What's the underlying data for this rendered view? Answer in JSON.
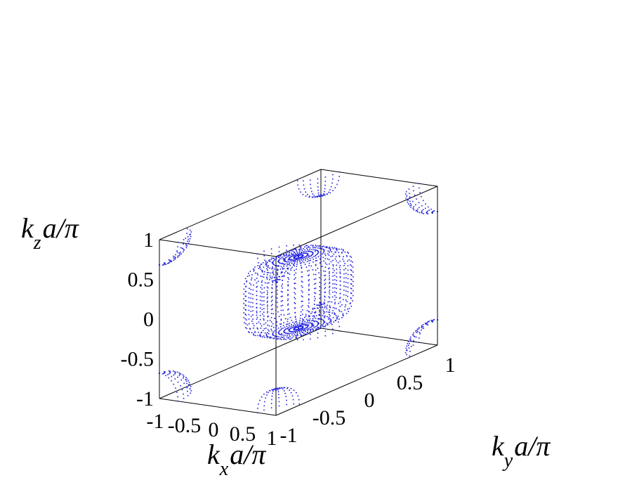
{
  "chart_data": {
    "type": "scatter",
    "subtype": "3d-fermi-surface",
    "title": "",
    "marker_color": "#1f1fe0",
    "frame_color": "#000000",
    "xlabel": {
      "var": "k",
      "sub": "x",
      "rest": "a/π"
    },
    "ylabel": {
      "var": "k",
      "sub": "y",
      "rest": "a/π"
    },
    "zlabel": {
      "var": "k",
      "sub": "z",
      "rest": "a/π"
    },
    "xlim": [
      -1,
      1
    ],
    "ylim": [
      -1,
      1
    ],
    "zlim": [
      -1,
      1
    ],
    "xticks": [
      "-1",
      "-0.5",
      "0",
      "0.5",
      "1"
    ],
    "yticks": [
      "-1",
      "-0.5",
      "0",
      "0.5",
      "1"
    ],
    "zticks": [
      "-1",
      "-0.5",
      "0",
      "0.5",
      "1"
    ],
    "tick_values": [
      -1,
      -0.5,
      0,
      0.5,
      1
    ],
    "surfaces": [
      {
        "name": "center pocket",
        "center": [
          0,
          0,
          0
        ],
        "radius": 0.45,
        "shape": "rounded-cube"
      },
      {
        "name": "corner pocket",
        "center": [
          1,
          1,
          1
        ],
        "radius": 0.32,
        "shape": "sphere"
      },
      {
        "name": "corner pocket",
        "center": [
          1,
          1,
          -1
        ],
        "radius": 0.32,
        "shape": "sphere"
      },
      {
        "name": "corner pocket",
        "center": [
          1,
          -1,
          1
        ],
        "radius": 0.32,
        "shape": "sphere"
      },
      {
        "name": "corner pocket",
        "center": [
          1,
          -1,
          -1
        ],
        "radius": 0.32,
        "shape": "sphere"
      },
      {
        "name": "corner pocket",
        "center": [
          -1,
          1,
          1
        ],
        "radius": 0.32,
        "shape": "sphere"
      },
      {
        "name": "corner pocket",
        "center": [
          -1,
          1,
          -1
        ],
        "radius": 0.32,
        "shape": "sphere"
      },
      {
        "name": "corner pocket",
        "center": [
          -1,
          -1,
          1
        ],
        "radius": 0.32,
        "shape": "sphere"
      },
      {
        "name": "corner pocket",
        "center": [
          -1,
          -1,
          -1
        ],
        "radius": 0.32,
        "shape": "sphere"
      }
    ]
  }
}
